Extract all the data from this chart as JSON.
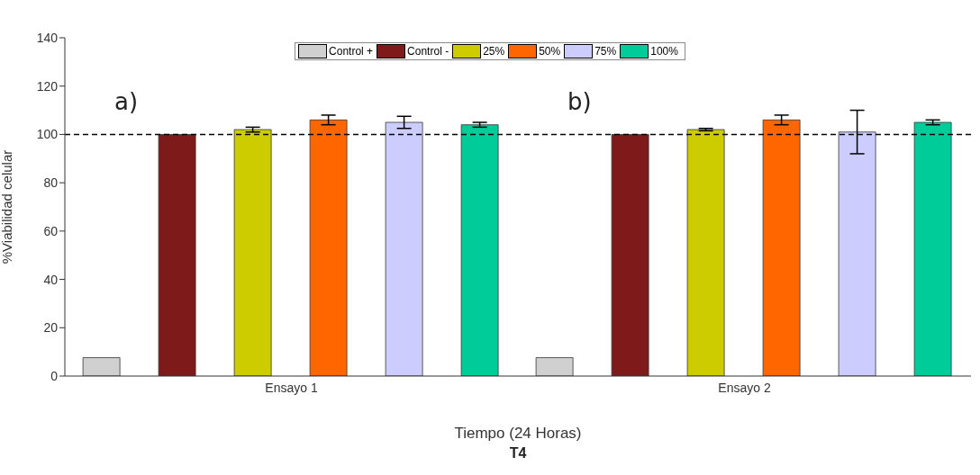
{
  "chart_data": {
    "type": "bar",
    "title": "T4",
    "xlabel": "Tiempo (24 Horas)",
    "ylabel": "%Viabilidad celular",
    "categories": [
      "Ensayo 1",
      "Ensayo 2"
    ],
    "series": [
      {
        "name": "Control +",
        "color": "#d0d0d0",
        "values": [
          7.6,
          7.6
        ]
      },
      {
        "name": "Control -",
        "color": "#7e1a1a",
        "values": [
          100,
          100
        ]
      },
      {
        "name": "25%",
        "color": "#cccc00",
        "values": [
          102,
          102
        ],
        "errors": [
          1,
          0.5
        ]
      },
      {
        "name": "50%",
        "color": "#ff6600",
        "values": [
          106,
          106
        ],
        "errors": [
          2,
          2
        ]
      },
      {
        "name": "75%",
        "color": "#ccccff",
        "values": [
          105,
          101
        ],
        "errors": [
          2.5,
          9
        ]
      },
      {
        "name": "100%",
        "color": "#00cc99",
        "values": [
          104,
          105
        ],
        "errors": [
          1,
          1
        ]
      }
    ],
    "ylim": [
      0,
      140
    ],
    "yticks": [
      0,
      20,
      40,
      60,
      80,
      100,
      120,
      140
    ],
    "legend": "top",
    "ref_lines": [
      {
        "axis": "y",
        "value": 100,
        "line_style": "dashed",
        "color": "#000000"
      }
    ],
    "annotations": [
      "a)",
      "b)"
    ]
  }
}
